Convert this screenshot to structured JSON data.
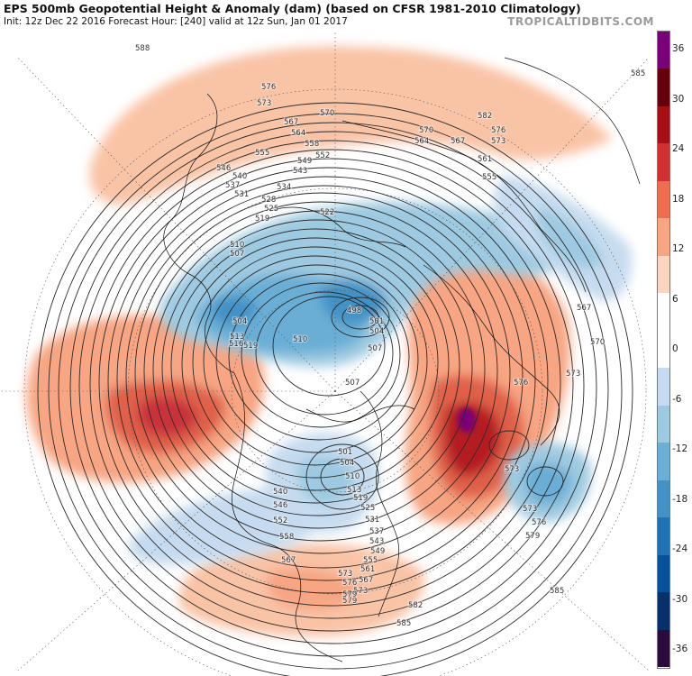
{
  "header": {
    "title": "EPS 500mb Geopotential Height & Anomaly (dam) (based on CFSR 1981-2010 Climatology)",
    "subtitle": "Init: 12z Dec 22 2016   Forecast Hour: [240]   valid at 12z Sun, Jan 01 2017",
    "brand": "TROPICALTIDBITS.COM"
  },
  "colorbar": {
    "ticks": [
      "36",
      "30",
      "24",
      "18",
      "12",
      "6",
      "0",
      "-6",
      "-12",
      "-18",
      "-24",
      "-30",
      "-36"
    ],
    "colors": [
      "#2b0a3d",
      "#08306b",
      "#08519c",
      "#2171b5",
      "#4292c6",
      "#6baed6",
      "#9ecae1",
      "#c6dbef",
      "#ffffff",
      "#ffffff",
      "#fcd5c0",
      "#f7a582",
      "#ef6c4e",
      "#d03030",
      "#a50f15",
      "#67000d",
      "#7a0177"
    ]
  },
  "height_labels": [
    "588",
    "585",
    "582",
    "579",
    "576",
    "573",
    "570",
    "567",
    "564",
    "561",
    "558",
    "555",
    "552",
    "549",
    "546",
    "543",
    "540",
    "537",
    "534",
    "531",
    "528",
    "525",
    "522",
    "519",
    "516",
    "513",
    "510",
    "507",
    "504",
    "501",
    "498"
  ],
  "contour_labels": [
    {
      "t": "588"
    },
    {
      "t": "576"
    },
    {
      "t": "573"
    },
    {
      "t": "570"
    },
    {
      "t": "567"
    },
    {
      "t": "564"
    },
    {
      "t": "558"
    },
    {
      "t": "555"
    },
    {
      "t": "549"
    },
    {
      "t": "546"
    },
    {
      "t": "543"
    },
    {
      "t": "540"
    },
    {
      "t": "537"
    },
    {
      "t": "534"
    },
    {
      "t": "531"
    },
    {
      "t": "528"
    },
    {
      "t": "525"
    },
    {
      "t": "522"
    },
    {
      "t": "519"
    },
    {
      "t": "552"
    },
    {
      "t": "582"
    },
    {
      "t": "570"
    },
    {
      "t": "567"
    },
    {
      "t": "564"
    },
    {
      "t": "576"
    },
    {
      "t": "573"
    },
    {
      "t": "561"
    },
    {
      "t": "555"
    },
    {
      "t": "585"
    },
    {
      "t": "510"
    },
    {
      "t": "507"
    },
    {
      "t": "504"
    },
    {
      "t": "513"
    },
    {
      "t": "516"
    },
    {
      "t": "519"
    },
    {
      "t": "510"
    },
    {
      "t": "507"
    },
    {
      "t": "498"
    },
    {
      "t": "501"
    },
    {
      "t": "504"
    },
    {
      "t": "567"
    },
    {
      "t": "570"
    },
    {
      "t": "573"
    },
    {
      "t": "576"
    },
    {
      "t": "573"
    },
    {
      "t": "573"
    },
    {
      "t": "576"
    },
    {
      "t": "579"
    },
    {
      "t": "585"
    },
    {
      "t": "582"
    },
    {
      "t": "585"
    },
    {
      "t": "507"
    },
    {
      "t": "501"
    },
    {
      "t": "504"
    },
    {
      "t": "510"
    },
    {
      "t": "513"
    },
    {
      "t": "519"
    },
    {
      "t": "525"
    },
    {
      "t": "531"
    },
    {
      "t": "537"
    },
    {
      "t": "543"
    },
    {
      "t": "549"
    },
    {
      "t": "555"
    },
    {
      "t": "561"
    },
    {
      "t": "567"
    },
    {
      "t": "573"
    },
    {
      "t": "579"
    },
    {
      "t": "540"
    },
    {
      "t": "546"
    },
    {
      "t": "552"
    },
    {
      "t": "558"
    },
    {
      "t": "567"
    },
    {
      "t": "573"
    },
    {
      "t": "576"
    },
    {
      "t": "579"
    }
  ]
}
